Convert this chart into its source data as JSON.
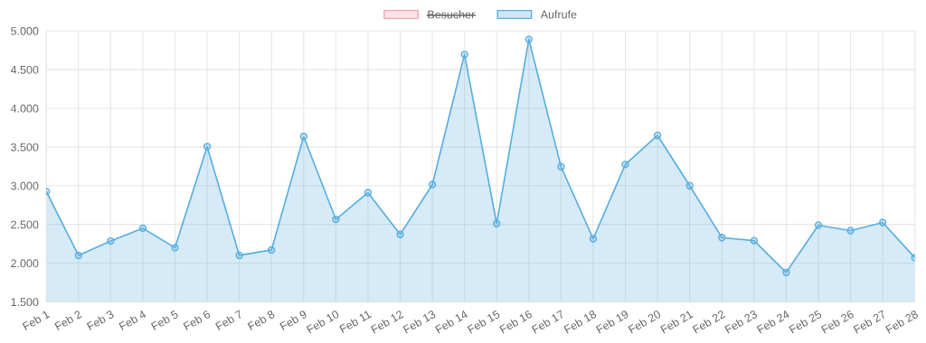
{
  "chart_data": {
    "type": "area",
    "categories": [
      "Feb 1",
      "Feb 2",
      "Feb 3",
      "Feb 4",
      "Feb 5",
      "Feb 6",
      "Feb 7",
      "Feb 8",
      "Feb 9",
      "Feb 10",
      "Feb 11",
      "Feb 12",
      "Feb 13",
      "Feb 14",
      "Feb 15",
      "Feb 16",
      "Feb 17",
      "Feb 18",
      "Feb 19",
      "Feb 20",
      "Feb 21",
      "Feb 22",
      "Feb 23",
      "Feb 24",
      "Feb 25",
      "Feb 26",
      "Feb 27",
      "Feb 28"
    ],
    "series": [
      {
        "name": "Besucher",
        "color": "#f4a3b3",
        "values": [
          null,
          null,
          null,
          null,
          null,
          null,
          null,
          null,
          null,
          null,
          null,
          null,
          null,
          null,
          null,
          null,
          null,
          null,
          null,
          null,
          null,
          null,
          null,
          null,
          null,
          null,
          null,
          null
        ]
      },
      {
        "name": "Aufrufe",
        "color": "#5aafe0",
        "values": [
          2925,
          2100,
          2285,
          2450,
          2200,
          3505,
          2100,
          2170,
          3635,
          2565,
          2910,
          2370,
          3015,
          4695,
          2510,
          4890,
          3245,
          2315,
          3275,
          3650,
          3000,
          2330,
          2290,
          1880,
          2490,
          2420,
          2525,
          2070
        ]
      }
    ],
    "ylim": [
      1500,
      5000
    ],
    "yticks": [
      {
        "value": 1500,
        "label": "1.500"
      },
      {
        "value": 2000,
        "label": "2.000"
      },
      {
        "value": 2500,
        "label": "2.500"
      },
      {
        "value": 3000,
        "label": "3.000"
      },
      {
        "value": 3500,
        "label": "3.500"
      },
      {
        "value": 4000,
        "label": "4.000"
      },
      {
        "value": 4500,
        "label": "4.500"
      },
      {
        "value": 5000,
        "label": "5.000"
      }
    ],
    "grid": true,
    "legend": "top",
    "marker": "circle",
    "line_style": "solid"
  }
}
